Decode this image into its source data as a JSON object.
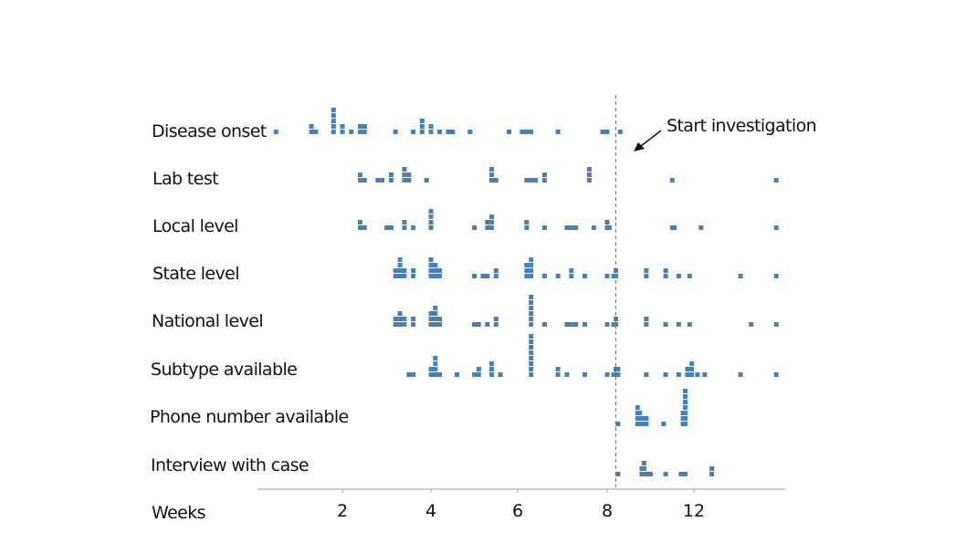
{
  "chart_data": {
    "type": "scatter",
    "title": "",
    "xlabel": "Weeks",
    "ylabel": "",
    "grid": false,
    "legend": "none",
    "x_ticks": [
      {
        "value": 2,
        "label": "2"
      },
      {
        "value": 4,
        "label": "4"
      },
      {
        "value": 6,
        "label": "6"
      },
      {
        "value": 8,
        "label": "8"
      },
      {
        "value": 12,
        "label": "12"
      }
    ],
    "rows": [
      {
        "label": "Disease onset",
        "points": [
          [
            0.5,
            1
          ],
          [
            1.3,
            2
          ],
          [
            1.4,
            1
          ],
          [
            1.8,
            5
          ],
          [
            2.0,
            2
          ],
          [
            2.2,
            1
          ],
          [
            2.4,
            2
          ],
          [
            2.5,
            2
          ],
          [
            3.2,
            1
          ],
          [
            3.6,
            1
          ],
          [
            3.8,
            3
          ],
          [
            4.0,
            2
          ],
          [
            4.2,
            1
          ],
          [
            4.4,
            1
          ],
          [
            4.5,
            1
          ],
          [
            4.9,
            1
          ],
          [
            5.8,
            1
          ],
          [
            6.1,
            1
          ],
          [
            6.2,
            1
          ],
          [
            6.3,
            1
          ],
          [
            6.9,
            1
          ],
          [
            7.9,
            1
          ],
          [
            8.0,
            1
          ],
          [
            8.6,
            1
          ]
        ]
      },
      {
        "label": "Lab test",
        "points": [
          [
            2.4,
            2
          ],
          [
            2.5,
            1
          ],
          [
            2.8,
            1
          ],
          [
            2.9,
            1
          ],
          [
            3.1,
            2
          ],
          [
            3.4,
            3
          ],
          [
            3.5,
            2
          ],
          [
            3.9,
            1
          ],
          [
            5.4,
            3
          ],
          [
            5.5,
            1
          ],
          [
            6.2,
            1
          ],
          [
            6.3,
            1
          ],
          [
            6.4,
            1
          ],
          [
            6.6,
            2
          ],
          [
            7.6,
            3
          ],
          [
            11.0,
            1
          ],
          [
            14.3,
            1
          ]
        ]
      },
      {
        "label": "Local level",
        "points": [
          [
            2.4,
            2
          ],
          [
            2.5,
            1
          ],
          [
            3.0,
            1
          ],
          [
            3.1,
            1
          ],
          [
            3.4,
            2
          ],
          [
            3.6,
            1
          ],
          [
            4.0,
            4
          ],
          [
            5.0,
            1
          ],
          [
            5.3,
            2
          ],
          [
            5.4,
            3
          ],
          [
            6.2,
            2
          ],
          [
            6.6,
            1
          ],
          [
            7.1,
            1
          ],
          [
            7.2,
            1
          ],
          [
            7.3,
            1
          ],
          [
            7.7,
            1
          ],
          [
            8.0,
            2
          ],
          [
            8.1,
            1
          ],
          [
            11.0,
            1
          ],
          [
            11.1,
            1
          ],
          [
            12.2,
            1
          ],
          [
            14.3,
            1
          ]
        ]
      },
      {
        "label": "State level",
        "points": [
          [
            3.2,
            2
          ],
          [
            3.3,
            4
          ],
          [
            3.4,
            2
          ],
          [
            3.6,
            2
          ],
          [
            4.0,
            4
          ],
          [
            4.1,
            3
          ],
          [
            4.2,
            2
          ],
          [
            5.0,
            1
          ],
          [
            5.2,
            1
          ],
          [
            5.3,
            1
          ],
          [
            5.5,
            2
          ],
          [
            6.2,
            3
          ],
          [
            6.3,
            4
          ],
          [
            6.6,
            1
          ],
          [
            6.9,
            1
          ],
          [
            7.2,
            2
          ],
          [
            7.5,
            1
          ],
          [
            8.0,
            1
          ],
          [
            8.3,
            1
          ],
          [
            8.4,
            2
          ],
          [
            9.8,
            2
          ],
          [
            10.7,
            2
          ],
          [
            11.3,
            1
          ],
          [
            11.8,
            1
          ],
          [
            13.3,
            1
          ],
          [
            14.3,
            1
          ]
        ]
      },
      {
        "label": "National level",
        "points": [
          [
            3.2,
            2
          ],
          [
            3.3,
            3
          ],
          [
            3.4,
            2
          ],
          [
            3.6,
            2
          ],
          [
            4.0,
            3
          ],
          [
            4.1,
            4
          ],
          [
            4.2,
            2
          ],
          [
            5.0,
            1
          ],
          [
            5.1,
            1
          ],
          [
            5.3,
            1
          ],
          [
            5.5,
            2
          ],
          [
            6.3,
            6
          ],
          [
            6.6,
            1
          ],
          [
            7.1,
            1
          ],
          [
            7.2,
            1
          ],
          [
            7.3,
            1
          ],
          [
            7.5,
            1
          ],
          [
            8.0,
            1
          ],
          [
            8.3,
            1
          ],
          [
            8.4,
            2
          ],
          [
            9.8,
            2
          ],
          [
            10.7,
            1
          ],
          [
            11.3,
            1
          ],
          [
            11.8,
            1
          ],
          [
            13.6,
            1
          ],
          [
            14.3,
            1
          ]
        ]
      },
      {
        "label": "Subtype available",
        "points": [
          [
            3.5,
            1
          ],
          [
            3.6,
            1
          ],
          [
            4.0,
            2
          ],
          [
            4.1,
            4
          ],
          [
            4.2,
            1
          ],
          [
            4.6,
            1
          ],
          [
            5.0,
            1
          ],
          [
            5.1,
            2
          ],
          [
            5.4,
            3
          ],
          [
            5.6,
            1
          ],
          [
            6.3,
            8
          ],
          [
            6.9,
            2
          ],
          [
            7.1,
            1
          ],
          [
            7.5,
            1
          ],
          [
            8.0,
            1
          ],
          [
            8.3,
            1
          ],
          [
            8.4,
            2
          ],
          [
            8.5,
            2
          ],
          [
            9.8,
            1
          ],
          [
            10.7,
            1
          ],
          [
            11.3,
            1
          ],
          [
            11.7,
            2
          ],
          [
            11.9,
            3
          ],
          [
            12.1,
            1
          ],
          [
            12.3,
            1
          ],
          [
            13.3,
            1
          ],
          [
            14.3,
            1
          ]
        ]
      },
      {
        "label": "Phone number available",
        "points": [
          [
            8.5,
            1
          ],
          [
            9.4,
            4
          ],
          [
            9.5,
            3
          ],
          [
            9.6,
            2
          ],
          [
            9.8,
            2
          ],
          [
            10.6,
            1
          ],
          [
            11.5,
            3
          ],
          [
            11.6,
            7
          ]
        ]
      },
      {
        "label": "Interview with case",
        "points": [
          [
            8.5,
            1
          ],
          [
            9.6,
            2
          ],
          [
            9.7,
            3
          ],
          [
            9.8,
            1
          ],
          [
            10.0,
            1
          ],
          [
            10.7,
            1
          ],
          [
            11.4,
            1
          ],
          [
            11.6,
            1
          ],
          [
            12.5,
            2
          ]
        ]
      }
    ],
    "reference_line": {
      "x": 8.4,
      "label": "Start investigation"
    }
  }
}
